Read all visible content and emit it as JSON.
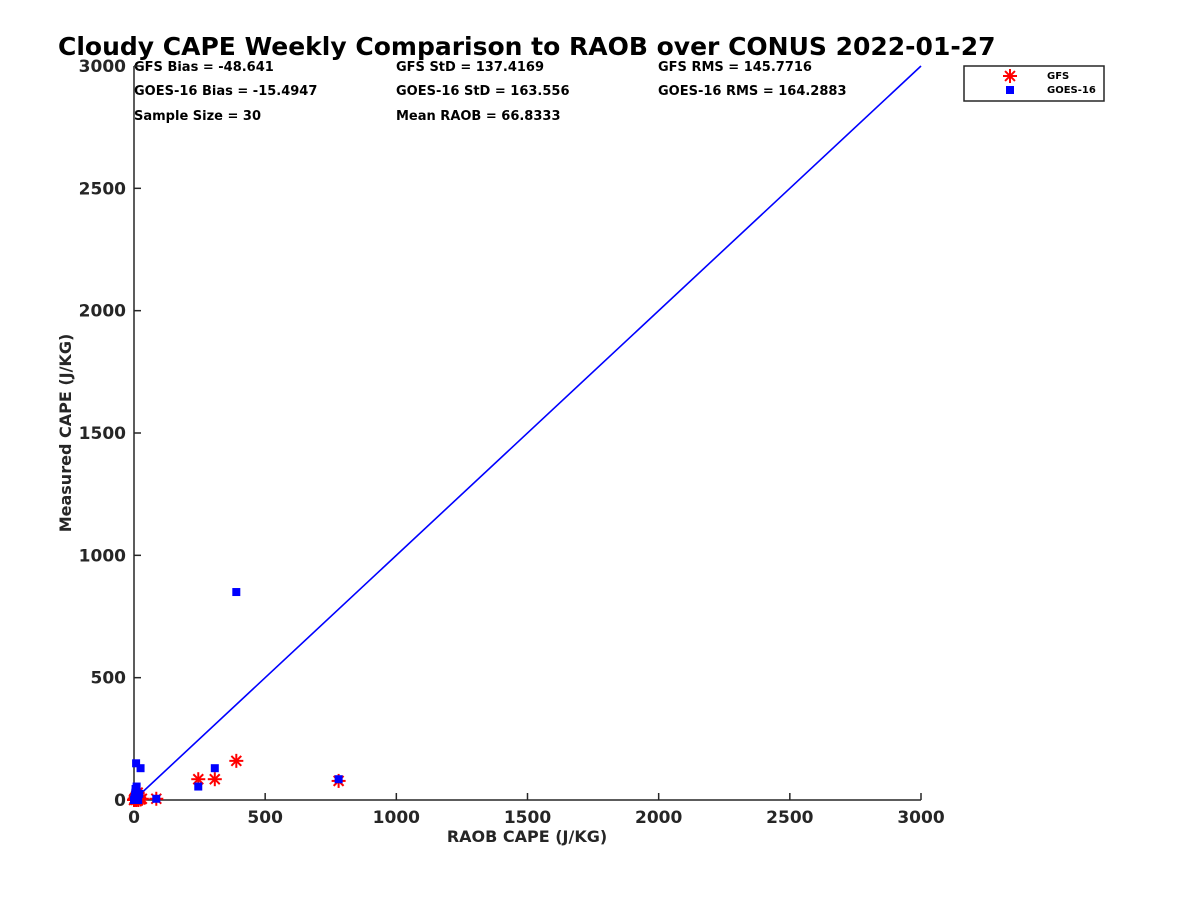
{
  "chart_data": {
    "type": "scatter",
    "title": "Cloudy CAPE Weekly Comparison to RAOB over CONUS 2022-01-27",
    "xlabel": "RAOB CAPE (J/KG)",
    "ylabel": "Measured CAPE (J/KG)",
    "xlim": [
      0,
      3000
    ],
    "ylim": [
      0,
      3000
    ],
    "xticks": [
      "0",
      "500",
      "1000",
      "1500",
      "2000",
      "2500",
      "3000"
    ],
    "yticks": [
      "0",
      "500",
      "1000",
      "1500",
      "2000",
      "2500",
      "3000"
    ],
    "grid": false,
    "legend_position": "top-right",
    "one_to_one_line": {
      "x": [
        0,
        3000
      ],
      "y": [
        0,
        3000
      ],
      "color": "#0000ff"
    },
    "stats": [
      [
        "GFS Bias = -48.641",
        "GFS StD = 137.4169",
        "GFS RMS = 145.7716"
      ],
      [
        "GOES-16 Bias = -15.4947",
        "GOES-16 StD = 163.556",
        "GOES-16 RMS = 164.2883"
      ],
      [
        "Sample Size = 30",
        "Mean RAOB = 66.8333",
        ""
      ]
    ],
    "series": [
      {
        "name": "GFS",
        "marker": "asterisk",
        "color": "#ff0000",
        "points": [
          [
            0,
            0
          ],
          [
            2,
            5
          ],
          [
            4,
            2
          ],
          [
            6,
            10
          ],
          [
            8,
            0
          ],
          [
            10,
            20
          ],
          [
            12,
            5
          ],
          [
            14,
            30
          ],
          [
            16,
            0
          ],
          [
            20,
            10
          ],
          [
            25,
            2
          ],
          [
            30,
            5
          ],
          [
            85,
            5
          ],
          [
            245,
            85
          ],
          [
            308,
            85
          ],
          [
            390,
            160
          ],
          [
            780,
            78
          ]
        ]
      },
      {
        "name": "GOES-16",
        "marker": "square",
        "color": "#0000ff",
        "points": [
          [
            0,
            0
          ],
          [
            2,
            8
          ],
          [
            4,
            20
          ],
          [
            5,
            30
          ],
          [
            6,
            45
          ],
          [
            8,
            150
          ],
          [
            10,
            55
          ],
          [
            12,
            5
          ],
          [
            14,
            10
          ],
          [
            16,
            0
          ],
          [
            20,
            25
          ],
          [
            25,
            130
          ],
          [
            85,
            5
          ],
          [
            245,
            55
          ],
          [
            308,
            130
          ],
          [
            390,
            850
          ],
          [
            780,
            85
          ]
        ]
      }
    ]
  }
}
